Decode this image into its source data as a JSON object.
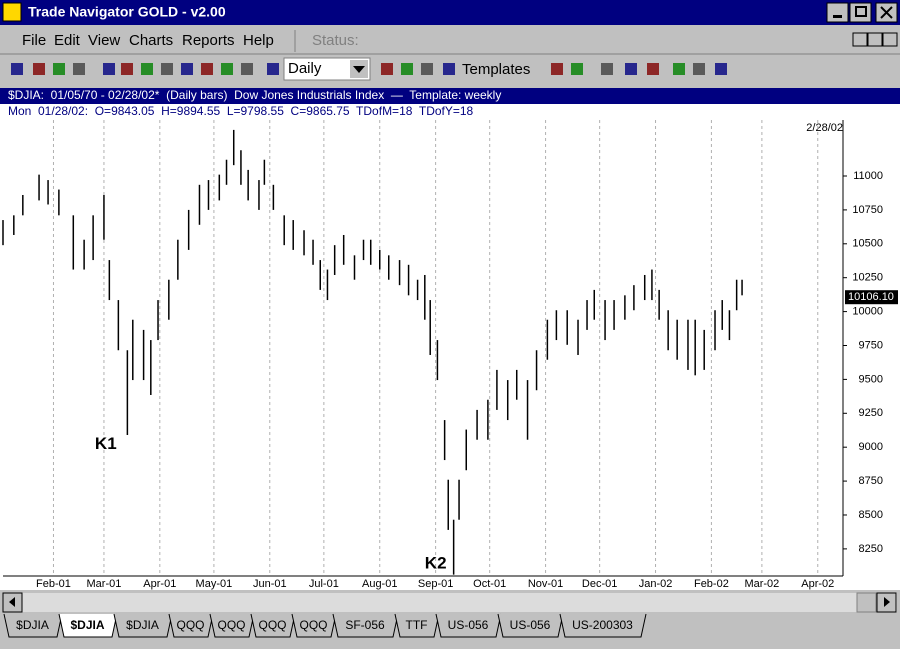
{
  "window": {
    "title": "Trade Navigator GOLD - v2.00"
  },
  "menu": [
    "File",
    "Edit",
    "View",
    "Charts",
    "Reports",
    "Help"
  ],
  "status_label": "Status:",
  "toolbar": {
    "period": "Daily",
    "templates": "Templates"
  },
  "chart_header": "$DJIA:  01/05/70 - 02/28/02*  (Daily bars)  Dow Jones Industrials Index  —  Template: weekly",
  "info_line": "Mon  01/28/02:  O=9843.05  H=9894.55  L=9798.55  C=9865.75  TDofM=18  TDofY=18",
  "tabs": [
    "$DJIA",
    "$DJIA",
    "$DJIA",
    "QQQ",
    "QQQ",
    "QQQ",
    "QQQ",
    "SF-056",
    "TTF",
    "US-056",
    "US-056",
    "US-200303"
  ],
  "active_tab": 1,
  "chart_data": {
    "type": "ohlc",
    "date_label": "2/28/02",
    "color": "#000000",
    "x": [
      3,
      9,
      14,
      23,
      28,
      34,
      42,
      48,
      53,
      59,
      62,
      67,
      72,
      75,
      81,
      85,
      89,
      95,
      100,
      106,
      112,
      117,
      123,
      127,
      131,
      135,
      139,
      145,
      148,
      153,
      159,
      164,
      170,
      175,
      179,
      183,
      187,
      192,
      198,
      203,
      207,
      212,
      217,
      223,
      228,
      233,
      237,
      240,
      244,
      248,
      250,
      253,
      256,
      260,
      266,
      272,
      277,
      283,
      288,
      294,
      299,
      305,
      310,
      316,
      322,
      327,
      331,
      337,
      342,
      348,
      353,
      359,
      363,
      367,
      372,
      377,
      383,
      387,
      392,
      398,
      402,
      406,
      410,
      413
    ],
    "high": [
      10675,
      10710,
      10860,
      11010,
      10970,
      10900,
      10710,
      10530,
      10710,
      10860,
      10380,
      10085,
      9715,
      9940,
      9865,
      9790,
      10085,
      10235,
      10530,
      10750,
      10935,
      10970,
      11010,
      11120,
      11340,
      11190,
      11045,
      10970,
      11120,
      10935,
      10710,
      10675,
      10600,
      10530,
      10380,
      10310,
      10490,
      10565,
      10415,
      10530,
      10530,
      10455,
      10415,
      10380,
      10345,
      10235,
      10270,
      10085,
      9790,
      9200,
      8760,
      8465,
      8760,
      9130,
      9275,
      9350,
      9570,
      9495,
      9570,
      9495,
      9715,
      9940,
      10010,
      10010,
      9940,
      10085,
      10160,
      10085,
      10085,
      10120,
      10195,
      10270,
      10310,
      10160,
      10010,
      9940,
      9940,
      9940,
      9865,
      10010,
      10085,
      10010,
      10235,
      10235
    ],
    "low": [
      10490,
      10565,
      10710,
      10820,
      10790,
      10710,
      10310,
      10310,
      10380,
      10530,
      10085,
      9715,
      9090,
      9495,
      9495,
      9385,
      9790,
      9940,
      10235,
      10455,
      10640,
      10750,
      10820,
      10935,
      11080,
      10935,
      10820,
      10750,
      10935,
      10750,
      10490,
      10455,
      10415,
      10345,
      10160,
      10085,
      10270,
      10345,
      10235,
      10380,
      10345,
      10310,
      10235,
      10195,
      10120,
      10085,
      9940,
      9680,
      9495,
      8905,
      8390,
      8060,
      8465,
      8830,
      9055,
      9055,
      9275,
      9200,
      9350,
      9055,
      9420,
      9645,
      9790,
      9755,
      9680,
      9865,
      9940,
      9790,
      9865,
      9940,
      10010,
      10085,
      10085,
      9940,
      9715,
      9645,
      9570,
      9530,
      9570,
      9715,
      9865,
      9790,
      10010,
      10120
    ],
    "xlim": [
      3,
      469
    ],
    "ylim": [
      8050,
      11413
    ],
    "xticks": [
      {
        "value": 31,
        "label": "Feb-01"
      },
      {
        "value": 59,
        "label": "Mar-01"
      },
      {
        "value": 90,
        "label": "Apr-01"
      },
      {
        "value": 120,
        "label": "May-01"
      },
      {
        "value": 151,
        "label": "Jun-01"
      },
      {
        "value": 181,
        "label": "Jul-01"
      },
      {
        "value": 212,
        "label": "Aug-01"
      },
      {
        "value": 243,
        "label": "Sep-01"
      },
      {
        "value": 273,
        "label": "Oct-01"
      },
      {
        "value": 304,
        "label": "Nov-01"
      },
      {
        "value": 334,
        "label": "Dec-01"
      },
      {
        "value": 365,
        "label": "Jan-02"
      },
      {
        "value": 396,
        "label": "Feb-02"
      },
      {
        "value": 424,
        "label": "Mar-02"
      },
      {
        "value": 455,
        "label": "Apr-02"
      }
    ],
    "yticks": [
      8250,
      8500,
      8750,
      9000,
      9250,
      9500,
      9750,
      10000,
      10250,
      10500,
      10750,
      11000
    ],
    "last_price": {
      "value": 10106.1,
      "label": "10106.10"
    },
    "grid": true,
    "annotations": [
      {
        "text": "K1",
        "x": 54,
        "y": 9020
      },
      {
        "text": "K2",
        "x": 237,
        "y": 8140
      }
    ]
  }
}
